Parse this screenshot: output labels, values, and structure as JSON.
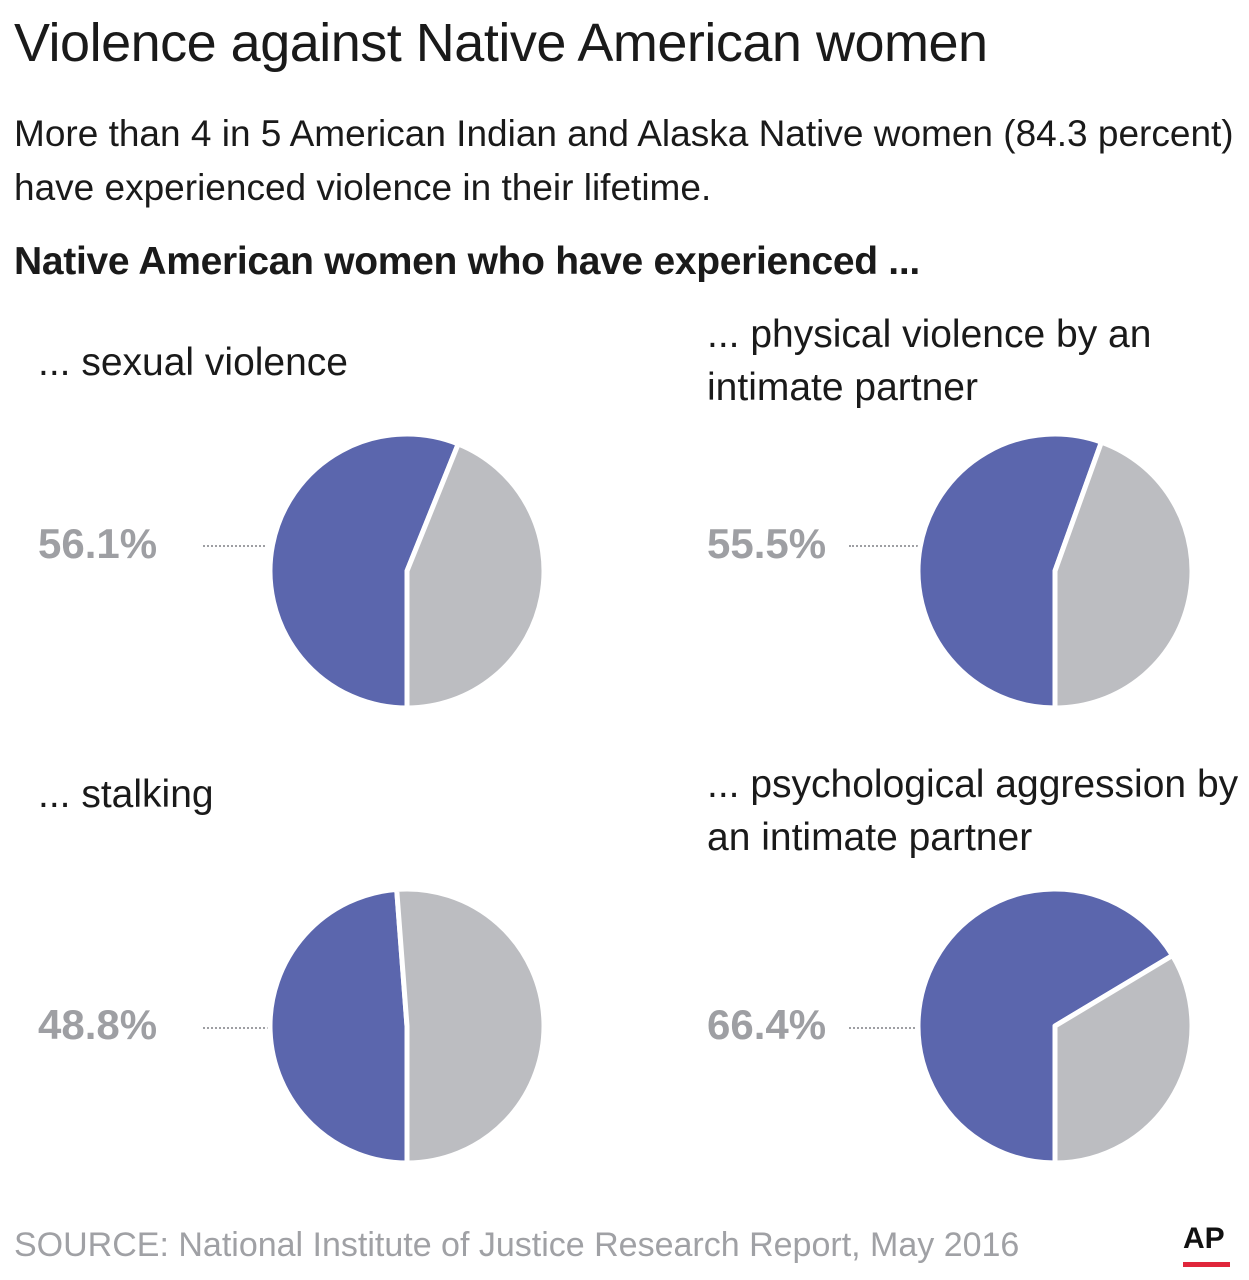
{
  "title": "Violence against Native American women",
  "subtitle": "More than 4 in 5 American Indian and Alaska Native women (84.3 percent) have experienced violence in their lifetime.",
  "section_heading": "Native American women who have experienced ...",
  "colors": {
    "primary": "#5b66ad",
    "remainder": "#bcbdc1",
    "label_gray": "#9e9fa3",
    "ap_red": "#e0263b"
  },
  "chart_data": [
    {
      "type": "pie",
      "title": "... sexual violence",
      "value_label": "56.1%",
      "values": [
        56.1,
        43.9
      ]
    },
    {
      "type": "pie",
      "title": "... physical violence by an intimate partner",
      "value_label": "55.5%",
      "values": [
        55.5,
        44.5
      ]
    },
    {
      "type": "pie",
      "title": "... stalking",
      "value_label": "48.8%",
      "values": [
        48.8,
        51.2
      ]
    },
    {
      "type": "pie",
      "title": "... psychological aggression by an intimate partner",
      "value_label": "66.4%",
      "values": [
        66.4,
        33.6
      ]
    }
  ],
  "footer": {
    "source": "SOURCE: National Institute of Justice Research Report, May 2016",
    "logo": "AP"
  }
}
